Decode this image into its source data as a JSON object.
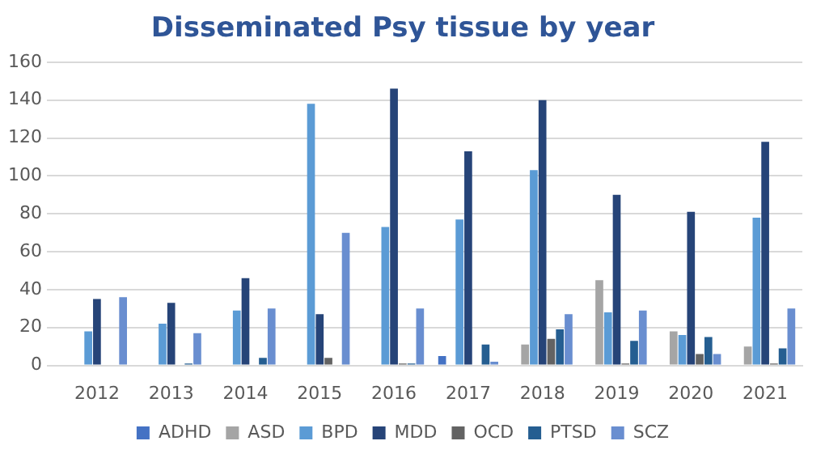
{
  "chart_data": {
    "type": "bar",
    "title": "Disseminated Psy tissue by year",
    "categories": [
      "2012",
      "2013",
      "2014",
      "2015",
      "2016",
      "2017",
      "2018",
      "2019",
      "2020",
      "2021"
    ],
    "series": [
      {
        "name": "ADHD",
        "color": "#4472c4",
        "values": [
          0,
          0,
          0,
          0,
          0,
          5,
          0,
          0,
          0,
          0
        ]
      },
      {
        "name": "ASD",
        "color": "#a5a5a5",
        "values": [
          0,
          0,
          0,
          0,
          0,
          0,
          11,
          45,
          18,
          10
        ]
      },
      {
        "name": "BPD",
        "color": "#5b9bd5",
        "values": [
          18,
          22,
          29,
          138,
          73,
          77,
          103,
          28,
          16,
          78
        ]
      },
      {
        "name": "MDD",
        "color": "#264478",
        "values": [
          35,
          33,
          46,
          27,
          146,
          113,
          140,
          90,
          81,
          118
        ]
      },
      {
        "name": "OCD",
        "color": "#636363",
        "values": [
          0,
          0,
          0,
          4,
          1,
          0,
          14,
          1,
          6,
          1
        ]
      },
      {
        "name": "PTSD",
        "color": "#255e91",
        "values": [
          0,
          1,
          4,
          0,
          1,
          11,
          19,
          13,
          15,
          9
        ]
      },
      {
        "name": "SCZ",
        "color": "#698ed0",
        "values": [
          36,
          17,
          30,
          70,
          30,
          2,
          27,
          29,
          6,
          30
        ]
      }
    ],
    "ylim": [
      0,
      160
    ],
    "yticks": [
      0,
      20,
      40,
      60,
      80,
      100,
      120,
      140,
      160
    ],
    "grid": "y",
    "legend": "bottom"
  }
}
